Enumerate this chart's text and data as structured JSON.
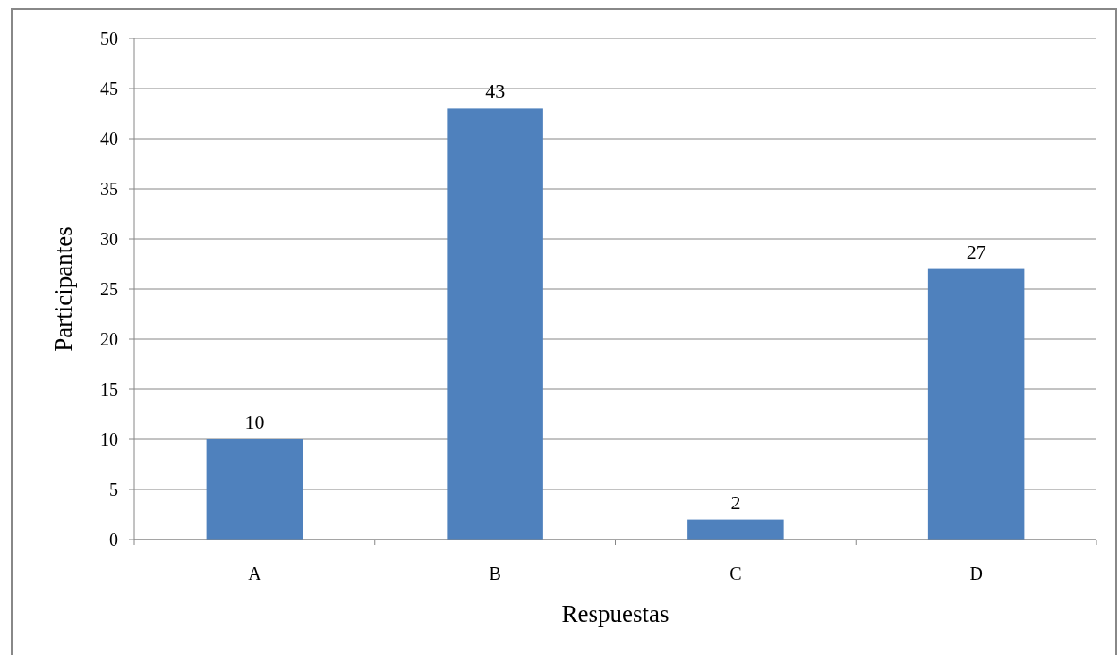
{
  "chart_data": {
    "type": "bar",
    "xlabel": "Respuestas",
    "ylabel": "Participantes",
    "categories": [
      "A",
      "B",
      "C",
      "D"
    ],
    "values": [
      10,
      43,
      2,
      27
    ],
    "color": "#4f81bd",
    "ylim": [
      0,
      50
    ],
    "yticks": [
      0,
      5,
      10,
      15,
      20,
      25,
      30,
      35,
      40,
      45,
      50
    ],
    "grid": "y",
    "data_labels": true
  }
}
